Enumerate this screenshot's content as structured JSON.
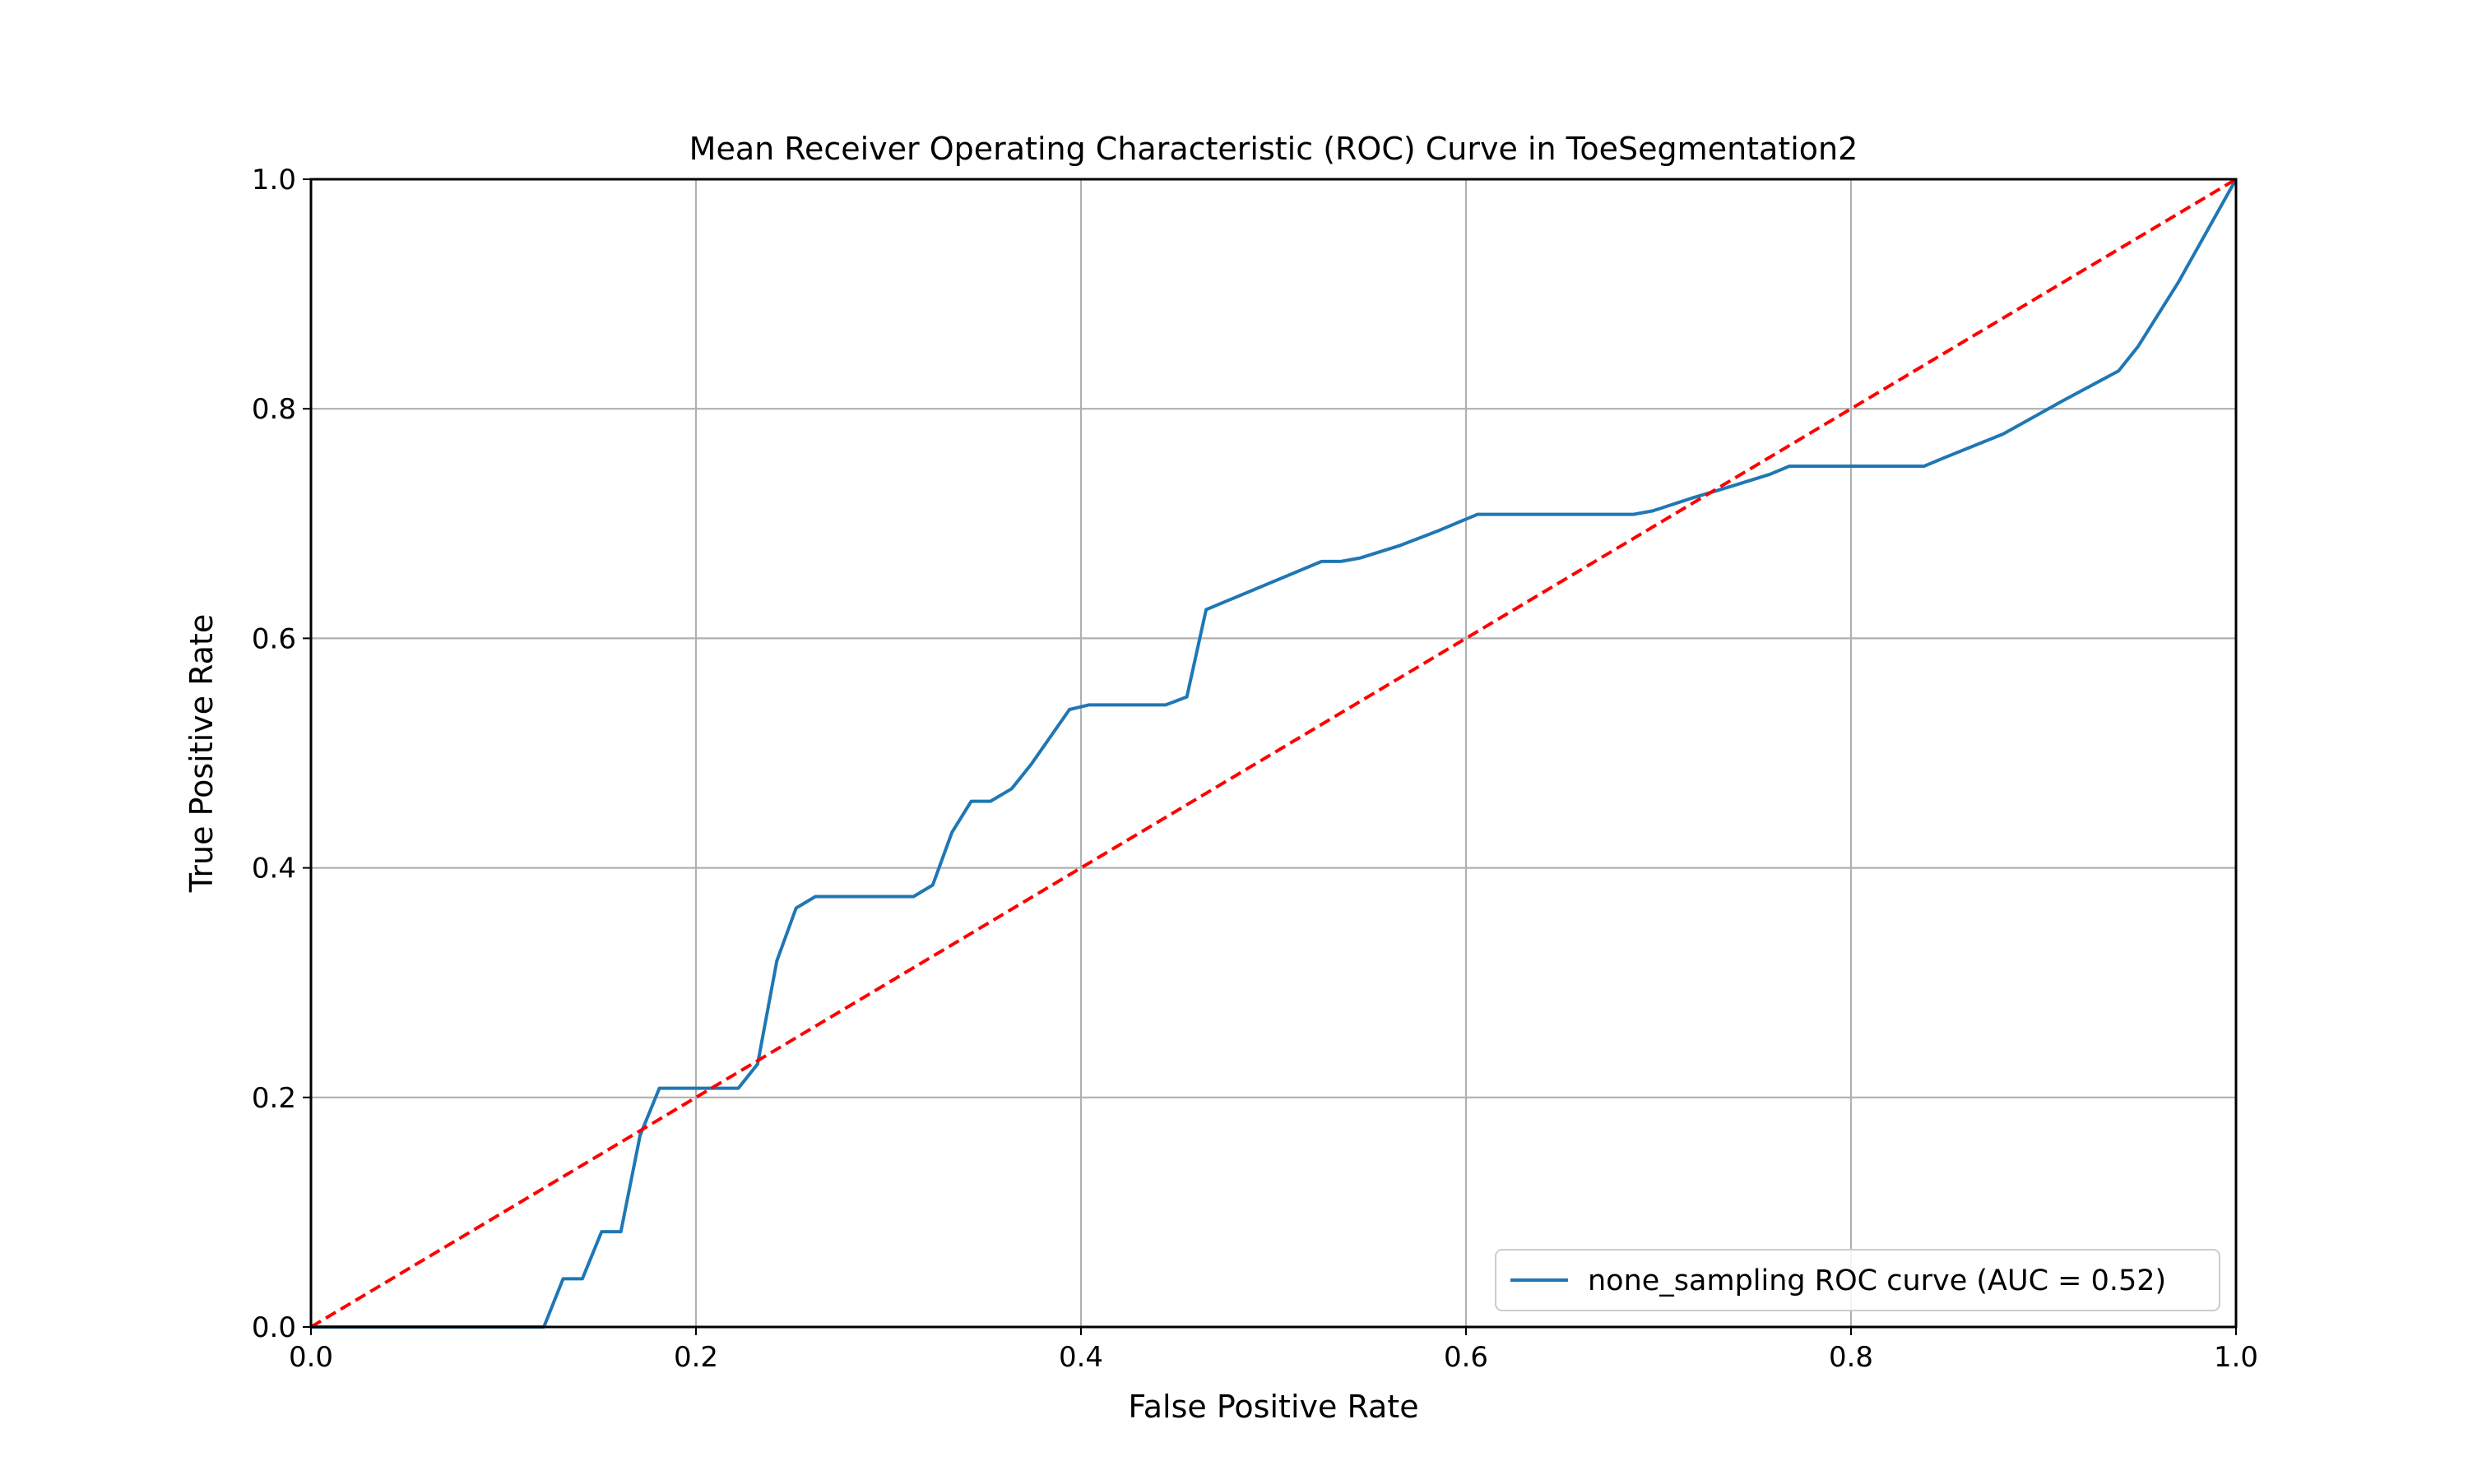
{
  "chart_data": {
    "type": "line",
    "title": "Mean Receiver Operating Characteristic (ROC) Curve in ToeSegmentation2",
    "xlabel": "False Positive Rate",
    "ylabel": "True Positive Rate",
    "xlim": [
      0.0,
      1.0
    ],
    "ylim": [
      0.0,
      1.0
    ],
    "grid": true,
    "legend_position": "lower right",
    "xticks": [
      "0.0",
      "0.2",
      "0.4",
      "0.6",
      "0.8",
      "1.0"
    ],
    "yticks": [
      "0.0",
      "0.2",
      "0.4",
      "0.6",
      "0.8",
      "1.0"
    ],
    "series": [
      {
        "name": "none_sampling ROC curve (AUC = 0.52)",
        "color": "#1f77b4",
        "style": "solid",
        "x": [
          0.0,
          0.121,
          0.131,
          0.141,
          0.151,
          0.161,
          0.171,
          0.181,
          0.2,
          0.21,
          0.222,
          0.232,
          0.242,
          0.252,
          0.262,
          0.273,
          0.293,
          0.313,
          0.323,
          0.333,
          0.343,
          0.353,
          0.364,
          0.374,
          0.384,
          0.394,
          0.404,
          0.424,
          0.444,
          0.455,
          0.465,
          0.475,
          0.495,
          0.515,
          0.525,
          0.535,
          0.545,
          0.566,
          0.586,
          0.596,
          0.606,
          0.616,
          0.646,
          0.667,
          0.687,
          0.697,
          0.717,
          0.737,
          0.758,
          0.768,
          0.788,
          0.808,
          0.838,
          0.848,
          0.879,
          0.909,
          0.939,
          0.949,
          0.97,
          1.0
        ],
        "y": [
          0.0,
          0.0,
          0.042,
          0.042,
          0.083,
          0.083,
          0.167,
          0.208,
          0.208,
          0.208,
          0.208,
          0.229,
          0.319,
          0.365,
          0.375,
          0.375,
          0.375,
          0.375,
          0.385,
          0.431,
          0.458,
          0.458,
          0.469,
          0.49,
          0.514,
          0.538,
          0.542,
          0.542,
          0.542,
          0.549,
          0.625,
          0.632,
          0.646,
          0.66,
          0.667,
          0.667,
          0.67,
          0.681,
          0.694,
          0.701,
          0.708,
          0.708,
          0.708,
          0.708,
          0.708,
          0.711,
          0.722,
          0.732,
          0.743,
          0.75,
          0.75,
          0.75,
          0.75,
          0.757,
          0.778,
          0.806,
          0.833,
          0.854,
          0.91,
          1.0
        ]
      },
      {
        "name": "",
        "color": "#ff0000",
        "style": "dashed",
        "x": [
          0.0,
          1.0
        ],
        "y": [
          0.0,
          1.0
        ]
      }
    ]
  }
}
